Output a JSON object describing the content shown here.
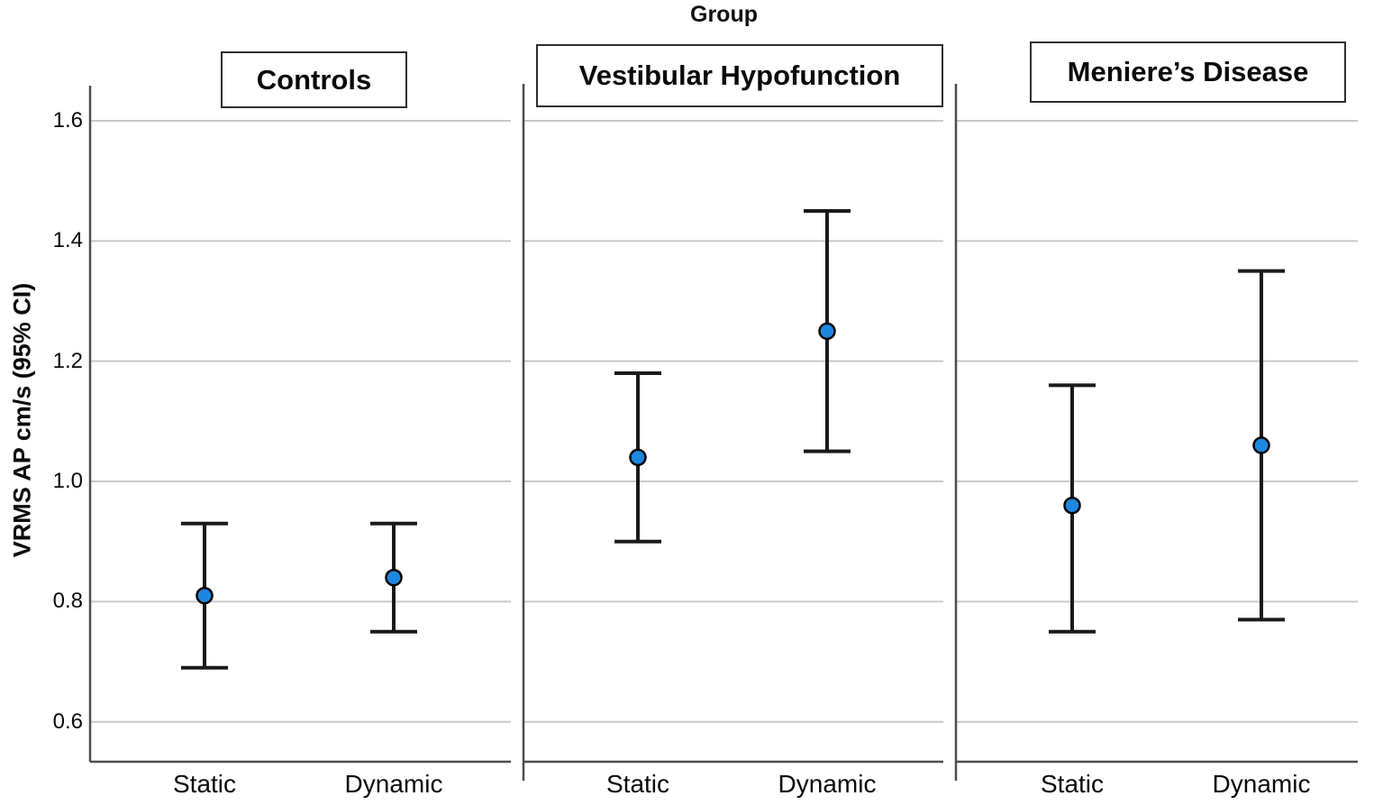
{
  "chart_data": {
    "type": "scatter",
    "subtype": "mean-error-bar-panels",
    "title": "Group",
    "ylabel": "VRMS AP cm/s (95% CI)",
    "xlabel": "",
    "ylim": [
      0.53,
      1.66
    ],
    "yticks": [
      1.6,
      1.4,
      1.2,
      1.0,
      0.8,
      0.6
    ],
    "categories": [
      "Static",
      "Dynamic"
    ],
    "grid": "horizontal-gridlines-on",
    "legend": "none",
    "panels": [
      {
        "label": "Controls",
        "points": [
          {
            "category": "Static",
            "mean": 0.81,
            "ci_low": 0.69,
            "ci_high": 0.93
          },
          {
            "category": "Dynamic",
            "mean": 0.84,
            "ci_low": 0.75,
            "ci_high": 0.93
          }
        ]
      },
      {
        "label": "Vestibular Hypofunction",
        "points": [
          {
            "category": "Static",
            "mean": 1.04,
            "ci_low": 0.9,
            "ci_high": 1.18
          },
          {
            "category": "Dynamic",
            "mean": 1.25,
            "ci_low": 1.05,
            "ci_high": 1.45
          }
        ]
      },
      {
        "label": "Meniere’s Disease",
        "points": [
          {
            "category": "Static",
            "mean": 0.96,
            "ci_low": 0.75,
            "ci_high": 1.16
          },
          {
            "category": "Dynamic",
            "mean": 1.06,
            "ci_low": 0.77,
            "ci_high": 1.35
          }
        ]
      }
    ],
    "colors": {
      "marker_fill": "#1E87E0",
      "marker_stroke": "#000000",
      "error_bar": "#1A1A1A",
      "gridline": "#C9C9C9",
      "axis": "#4D4D4D",
      "background": "#FFFFFF"
    }
  }
}
